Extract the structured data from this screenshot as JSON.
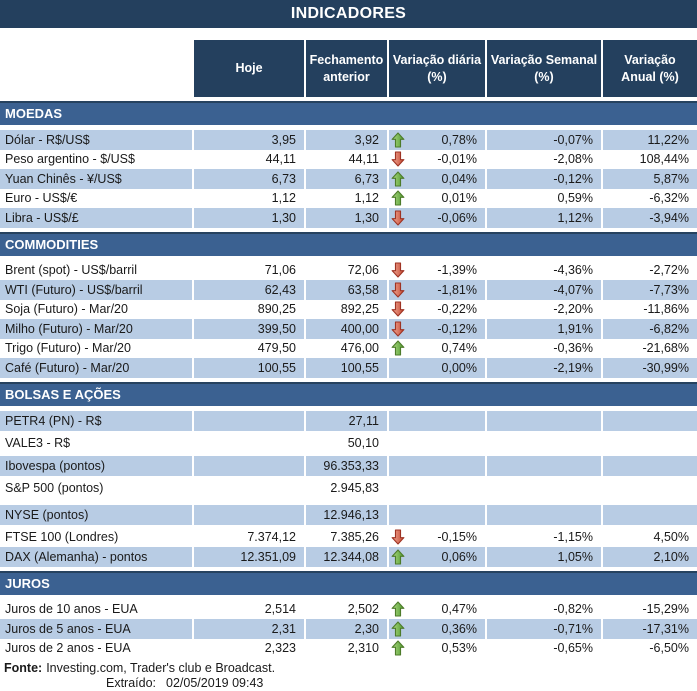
{
  "title": "INDICADORES",
  "columns": [
    "Hoje",
    "Fechamento\nanterior",
    "Variação diária\n(%)",
    "Variação Semanal\n(%)",
    "Variação\nAnual (%)"
  ],
  "colors": {
    "title_bar": "#24405E",
    "header_bg": "#24405E",
    "section_bg": "#3B6191",
    "row_shaded": "#B8CCE4",
    "up_arrow_green": "#5C9E33",
    "down_arrow_red": "#CE4A38"
  },
  "sections": [
    {
      "name": "MOEDAS",
      "rows": [
        {
          "label": "Dólar - R$/US$",
          "hoje": "3,95",
          "fechamento": "3,92",
          "arrow": "up",
          "diaria": "0,78%",
          "semanal": "-0,07%",
          "anual": "11,22%",
          "shaded": true
        },
        {
          "label": "Peso argentino - $/US$",
          "hoje": "44,11",
          "fechamento": "44,11",
          "arrow": "down",
          "diaria": "-0,01%",
          "semanal": "-2,08%",
          "anual": "108,44%",
          "shaded": false
        },
        {
          "label": "Yuan Chinês - ¥/US$",
          "hoje": "6,73",
          "fechamento": "6,73",
          "arrow": "up",
          "diaria": "0,04%",
          "semanal": "-0,12%",
          "anual": "5,87%",
          "shaded": true
        },
        {
          "label": "Euro - US$/€",
          "hoje": "1,12",
          "fechamento": "1,12",
          "arrow": "up",
          "diaria": "0,01%",
          "semanal": "0,59%",
          "anual": "-6,32%",
          "shaded": false
        },
        {
          "label": "Libra - US$/£",
          "hoje": "1,30",
          "fechamento": "1,30",
          "arrow": "down",
          "diaria": "-0,06%",
          "semanal": "1,12%",
          "anual": "-3,94%",
          "shaded": true
        }
      ]
    },
    {
      "name": "COMMODITIES",
      "rows": [
        {
          "label": "Brent (spot) - US$/barril",
          "hoje": "71,06",
          "fechamento": "72,06",
          "arrow": "down",
          "diaria": "-1,39%",
          "semanal": "-4,36%",
          "anual": "-2,72%",
          "shaded": false
        },
        {
          "label": "WTI (Futuro) - US$/barril",
          "hoje": "62,43",
          "fechamento": "63,58",
          "arrow": "down",
          "diaria": "-1,81%",
          "semanal": "-4,07%",
          "anual": "-7,73%",
          "shaded": true
        },
        {
          "label": "Soja (Futuro) - Mar/20",
          "hoje": "890,25",
          "fechamento": "892,25",
          "arrow": "down",
          "diaria": "-0,22%",
          "semanal": "-2,20%",
          "anual": "-11,86%",
          "shaded": false
        },
        {
          "label": "Milho (Futuro) - Mar/20",
          "hoje": "399,50",
          "fechamento": "400,00",
          "arrow": "down",
          "diaria": "-0,12%",
          "semanal": "1,91%",
          "anual": "-6,82%",
          "shaded": true
        },
        {
          "label": "Trigo (Futuro) - Mar/20",
          "hoje": "479,50",
          "fechamento": "476,00",
          "arrow": "up",
          "diaria": "0,74%",
          "semanal": "-0,36%",
          "anual": "-21,68%",
          "shaded": false
        },
        {
          "label": "Café (Futuro) - Mar/20",
          "hoje": "100,55",
          "fechamento": "100,55",
          "arrow": "none",
          "diaria": "0,00%",
          "semanal": "-2,19%",
          "anual": "-30,99%",
          "shaded": true
        }
      ]
    },
    {
      "name": "BOLSAS E AÇÕES",
      "rows": [
        {
          "label": "PETR4 (PN) - R$",
          "hoje": "",
          "fechamento": "27,11",
          "arrow": "none",
          "diaria": "",
          "semanal": "",
          "anual": "",
          "shaded": true,
          "tall": true
        },
        {
          "label": "VALE3 - R$",
          "hoje": "",
          "fechamento": "50,10",
          "arrow": "none",
          "diaria": "",
          "semanal": "",
          "anual": "",
          "shaded": false,
          "tall": true
        },
        {
          "label": "Ibovespa (pontos)",
          "hoje": "",
          "fechamento": "96.353,33",
          "arrow": "none",
          "diaria": "",
          "semanal": "",
          "anual": "",
          "shaded": true,
          "tall": true
        },
        {
          "label": "S&P 500 (pontos)",
          "hoje": "",
          "fechamento": "2.945,83",
          "arrow": "none",
          "diaria": "",
          "semanal": "",
          "anual": "",
          "shaded": false,
          "tall": true
        },
        {
          "label": "NYSE (pontos)",
          "hoje": "",
          "fechamento": "12.946,13",
          "arrow": "none",
          "diaria": "",
          "semanal": "",
          "anual": "",
          "shaded": true,
          "tall": true,
          "gap_before": true
        },
        {
          "label": "FTSE 100 (Londres)",
          "hoje": "7.374,12",
          "fechamento": "7.385,26",
          "arrow": "down",
          "diaria": "-0,15%",
          "semanal": "-1,15%",
          "anual": "4,50%",
          "shaded": false
        },
        {
          "label": "DAX (Alemanha) - pontos",
          "hoje": "12.351,09",
          "fechamento": "12.344,08",
          "arrow": "up",
          "diaria": "0,06%",
          "semanal": "1,05%",
          "anual": "2,10%",
          "shaded": true
        }
      ]
    },
    {
      "name": "JUROS",
      "rows": [
        {
          "label": "Juros de 10 anos - EUA",
          "hoje": "2,514",
          "fechamento": "2,502",
          "arrow": "up",
          "diaria": "0,47%",
          "semanal": "-0,82%",
          "anual": "-15,29%",
          "shaded": false
        },
        {
          "label": "Juros de 5 anos - EUA",
          "hoje": "2,31",
          "fechamento": "2,30",
          "arrow": "up",
          "diaria": "0,36%",
          "semanal": "-0,71%",
          "anual": "-17,31%",
          "shaded": true
        },
        {
          "label": "Juros de 2 anos - EUA",
          "hoje": "2,323",
          "fechamento": "2,310",
          "arrow": "up",
          "diaria": "0,53%",
          "semanal": "-0,65%",
          "anual": "-6,50%",
          "shaded": false
        }
      ]
    }
  ],
  "footer": {
    "fonte_label": "Fonte:",
    "fonte_text": "Investing.com, Trader's club e Broadcast.",
    "extraido_label": "Extraído:",
    "extraido_value": "02/05/2019 09:43"
  }
}
